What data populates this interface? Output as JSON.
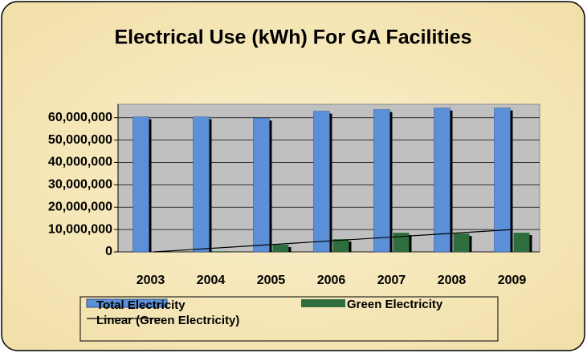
{
  "chart_data": {
    "type": "bar",
    "title": "Electrical Use  (kWh) For GA Facilities",
    "categories": [
      "2003",
      "2004",
      "2005",
      "2006",
      "2007",
      "2008",
      "2009"
    ],
    "series": [
      {
        "name": "Total Electricity",
        "color": "#5b8fd8",
        "values": [
          60400000,
          60400000,
          59800000,
          62900000,
          63600000,
          64300000,
          64300000
        ]
      },
      {
        "name": "Green Electricity",
        "color": "#2e6e3e",
        "values": [
          0,
          300000,
          3200000,
          5700000,
          8600000,
          8200000,
          8600000
        ]
      }
    ],
    "trendline": {
      "name": "Linear (Green Electricity)",
      "series": 1,
      "color": "#000000"
    },
    "ylim": [
      0,
      66000000
    ],
    "yticks": [
      0,
      {
        "value": 10000000,
        "label": "10,000,000"
      },
      {
        "value": 20000000,
        "label": "20,000,000"
      },
      {
        "value": 30000000,
        "label": "30,000,000"
      },
      {
        "value": 40000000,
        "label": "40,000,000"
      },
      {
        "value": 50000000,
        "label": "50,000,000"
      },
      {
        "value": 60000000,
        "label": "60,000,000"
      }
    ],
    "grid": true,
    "legend": "bottom"
  }
}
